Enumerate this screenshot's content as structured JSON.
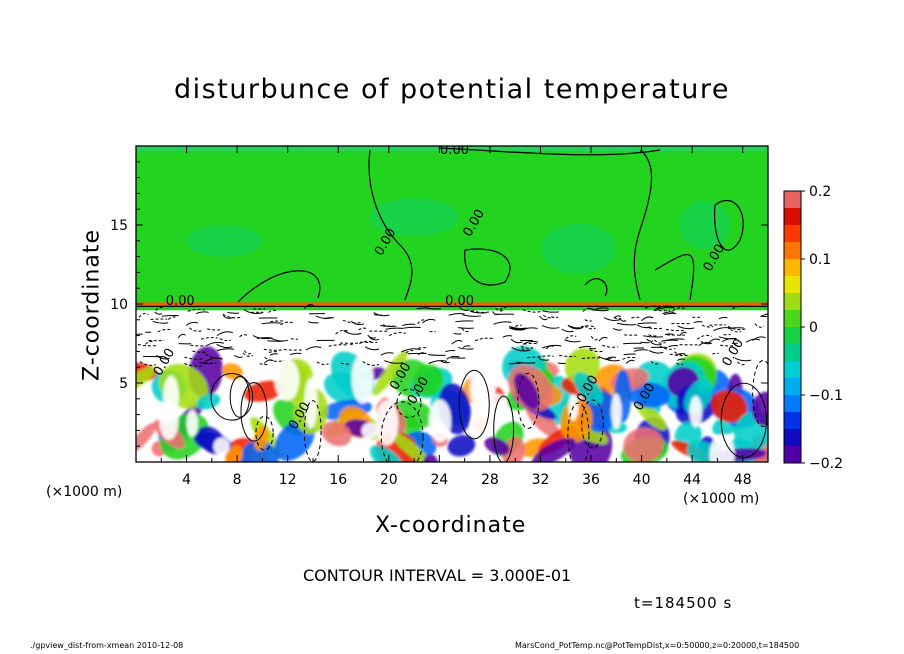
{
  "chart_data": {
    "type": "heatmap",
    "title": "disturbunce of potential temperature",
    "xlabel": "X-coordinate",
    "ylabel": "Z-coordinate",
    "x_unit": "(×1000 m)",
    "x_ticks": [
      4,
      8,
      12,
      16,
      20,
      24,
      28,
      32,
      36,
      40,
      44,
      48
    ],
    "y_ticks": [
      5,
      10,
      15
    ],
    "xlim": [
      0,
      50
    ],
    "ylim": [
      0,
      20
    ],
    "colorbar": {
      "ticks": [
        "0.2",
        "0.1",
        "0",
        "−0.1",
        "−0.2"
      ],
      "tick_values": [
        0.2,
        0.1,
        0,
        -0.1,
        -0.2
      ],
      "range": [
        -0.2,
        0.2
      ]
    },
    "contour_labels": [
      "0.00",
      "0.00",
      "0.00",
      "0.00",
      "0.00",
      "0.00",
      "0.00",
      "0.00",
      "0.00",
      "0.00",
      "0.00",
      "0.00",
      "0.00"
    ],
    "contour_interval": "CONTOUR INTERVAL = 3.000E-01",
    "time": "t=184500 s"
  },
  "footer": {
    "left": "./gpview_dist-from-xmean  2010-12-08",
    "right": "MarsCond_PotTemp.nc@PotTempDist,x=0:50000,z=0:20000,t=184500"
  }
}
